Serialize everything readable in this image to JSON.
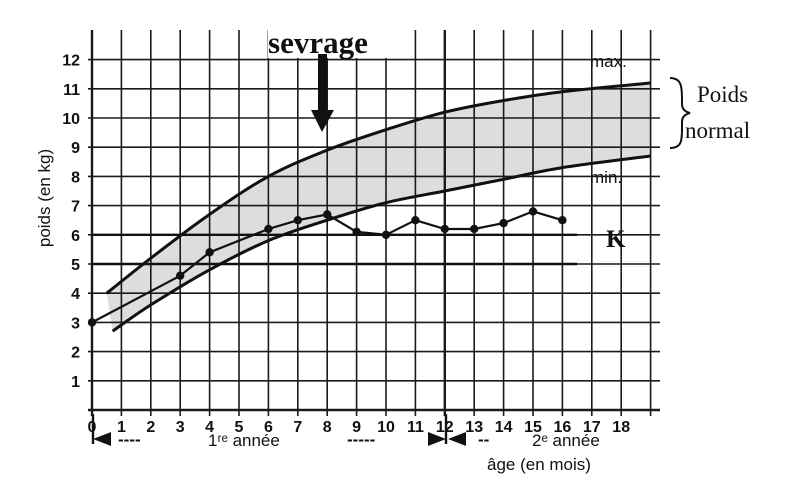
{
  "chart_data": {
    "type": "line",
    "title": "",
    "xlabel": "âge (en mois)",
    "ylabel": "poids (en kg)",
    "xlim": [
      0,
      19
    ],
    "ylim": [
      0,
      12.5
    ],
    "x_ticks": [
      "0",
      "1",
      "2",
      "3",
      "4",
      "5",
      "6",
      "7",
      "8",
      "9",
      "10",
      "11",
      "12",
      "13",
      "14",
      "15",
      "16",
      "17",
      "18"
    ],
    "y_ticks": [
      "1",
      "2",
      "3",
      "4",
      "5",
      "6",
      "7",
      "8",
      "9",
      "10",
      "11",
      "12"
    ],
    "grid": true,
    "series": [
      {
        "name": "K",
        "x": [
          0,
          3,
          4,
          6,
          7,
          8,
          9,
          10,
          11,
          12,
          13,
          14,
          15,
          16
        ],
        "y": [
          3.0,
          4.6,
          5.4,
          6.2,
          6.5,
          6.7,
          6.1,
          6.0,
          6.5,
          6.2,
          6.2,
          6.4,
          6.8,
          6.5
        ]
      }
    ],
    "reference_curves": [
      {
        "name": "max.",
        "x": [
          0.5,
          2,
          4,
          6,
          8,
          10,
          12,
          14,
          16,
          19
        ],
        "y": [
          4.0,
          5.2,
          6.7,
          8.0,
          8.9,
          9.6,
          10.2,
          10.6,
          10.9,
          11.2
        ]
      },
      {
        "name": "min.",
        "x": [
          0.7,
          2,
          4,
          6,
          8,
          10,
          12,
          14,
          16,
          19
        ],
        "y": [
          2.7,
          3.6,
          4.8,
          5.8,
          6.5,
          7.1,
          7.5,
          7.9,
          8.3,
          8.7
        ]
      }
    ],
    "horizontal_lines": [
      {
        "y": 5,
        "x_range": [
          0,
          16.5
        ]
      },
      {
        "y": 6,
        "x_range": [
          0,
          16.5
        ]
      }
    ],
    "annotations": {
      "weaning": {
        "text": "sevrage",
        "x": 8
      },
      "normal_band": {
        "line1": "Poids",
        "line2": "normal"
      },
      "series_label": "K",
      "period_first": "1ʳᵉ année",
      "period_second": "2ᵉ année",
      "dashes_left": "----",
      "dashes_right": "-----",
      "dashes_second": "--"
    },
    "band_color": "#d9d9d9"
  }
}
